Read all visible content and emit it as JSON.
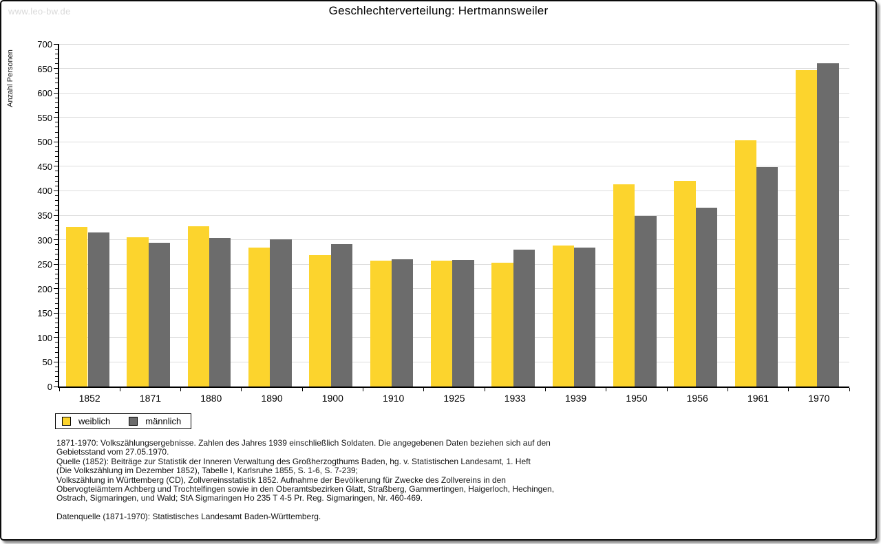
{
  "page": {
    "watermark": "www.leo-bw.de",
    "title": "Geschlechterverteilung: Hertmannsweiler"
  },
  "chart_data": {
    "type": "bar",
    "title": "Geschlechterverteilung: Hertmannsweiler",
    "xlabel": "",
    "ylabel": "Anzahl Personen",
    "ylim": [
      0,
      700
    ],
    "ytick_step": 50,
    "y_minor_step": 10,
    "grid": true,
    "legend_position": "bottom-left",
    "categories": [
      "1852",
      "1871",
      "1880",
      "1890",
      "1900",
      "1910",
      "1925",
      "1933",
      "1939",
      "1950",
      "1956",
      "1961",
      "1970"
    ],
    "series": [
      {
        "name": "weiblich",
        "key": "weiblich",
        "color": "#FCD42D",
        "values": [
          326,
          305,
          328,
          284,
          268,
          257,
          257,
          253,
          288,
          413,
          420,
          503,
          646
        ]
      },
      {
        "name": "männlich",
        "key": "maennlich",
        "color": "#6C6C6C",
        "values": [
          315,
          294,
          304,
          301,
          291,
          260,
          259,
          280,
          284,
          348,
          366,
          449,
          661
        ]
      }
    ]
  },
  "legend": {
    "items": [
      {
        "label": "weiblich",
        "color": "#FCD42D"
      },
      {
        "label": "männlich",
        "color": "#6C6C6C"
      }
    ]
  },
  "footer": {
    "lines": [
      "1871-1970: Volkszählungsergebnisse. Zahlen des Jahres 1939 einschließlich Soldaten. Die angegebenen Daten beziehen sich auf den",
      "Gebietsstand vom 27.05.1970.",
      "Quelle (1852): Beiträge zur Statistik der Inneren Verwaltung des Großherzogthums Baden, hg. v. Statistischen Landesamt, 1. Heft",
      "(Die Volkszählung im Dezember 1852), Tabelle I, Karlsruhe 1855, S. 1-6, S. 7-239;",
      "Volkszählung in Württemberg (CD), Zollvereinsstatistik 1852. Aufnahme der Bevölkerung für Zwecke des Zollvereins in den",
      "Obervogteiämtern Achberg und Trochtelfingen sowie in den Oberamtsbezirken Glatt, Straßberg, Gammertingen, Haigerloch, Hechingen,",
      "Ostrach, Sigmaringen, und Wald; StA Sigmaringen Ho 235 T 4-5 Pr. Reg. Sigmaringen, Nr. 460-469."
    ],
    "datasource": "Datenquelle (1871-1970): Statistisches Landesamt Baden-Württemberg."
  },
  "colors": {
    "female_bar": "#FCD42D",
    "male_bar": "#6C6C6C",
    "gridline": "#dcdcdc",
    "watermark": "#d9d9d9",
    "axis": "#000000"
  }
}
